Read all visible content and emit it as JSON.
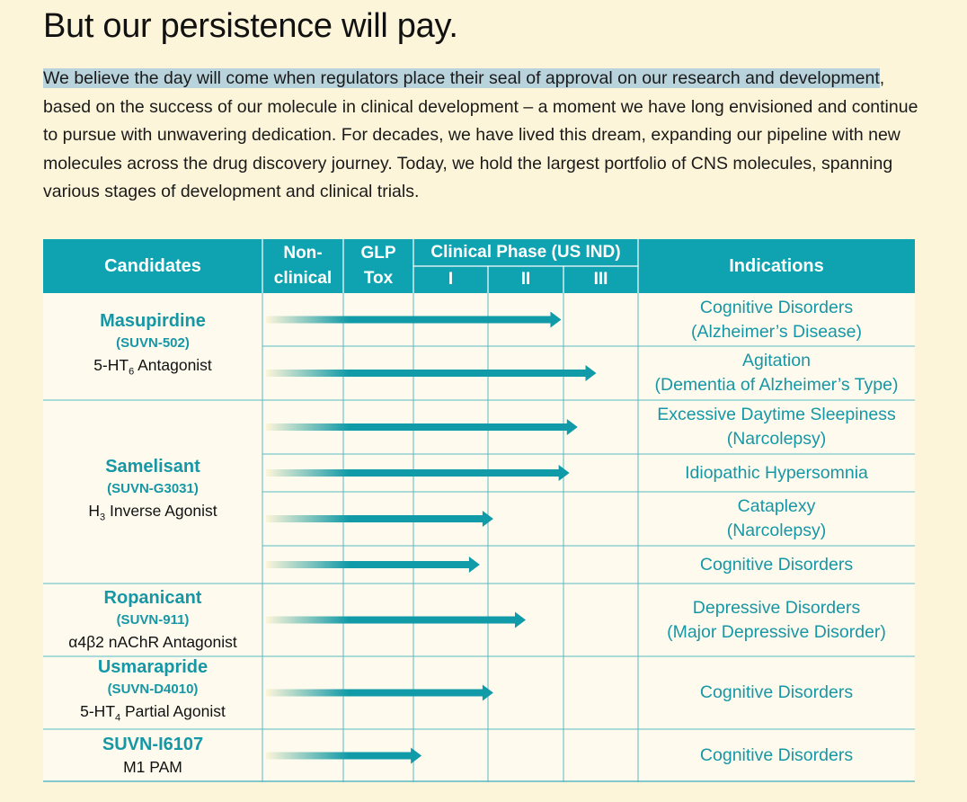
{
  "heading": "But our persistence will pay.",
  "intro": {
    "highlighted": "We believe the day will come when regulators place their seal of approval on our research and development",
    "rest": ", based on the success of our molecule in clinical development – a moment we have long envisioned and continue to pursue with unwavering dedication. For decades, we have lived this dream, expanding our pipeline with new molecules across the drug discovery journey. Today, we hold the largest portfolio of CNS molecules, spanning various stages of development and clinical trials."
  },
  "colors": {
    "background": "#fdf5d9",
    "header_fill": "#0fa3b1",
    "accent_text": "#1597a6",
    "grid_line": "#5ab8c1",
    "arrow": "#119aa8",
    "highlight": "#b9d3dc"
  },
  "table": {
    "headers": {
      "candidates": "Candidates",
      "nonclinical": [
        "Non-",
        "clinical"
      ],
      "glp": [
        "GLP",
        "Tox"
      ],
      "clinical": "Clinical Phase (US IND)",
      "phases": [
        "I",
        "II",
        "III"
      ],
      "indications": "Indications"
    },
    "stage_scale": [
      "Non-clinical",
      "GLP Tox",
      "I",
      "II",
      "III"
    ],
    "candidates": [
      {
        "name": "Masupirdine",
        "code": "(SUVN-502)",
        "moa_pre": "5-HT",
        "moa_sub": "6",
        "moa_post": " Antagonist"
      },
      {
        "name": "Samelisant",
        "code": "(SUVN-G3031)",
        "moa_pre": "H",
        "moa_sub": "3",
        "moa_post": " Inverse Agonist"
      },
      {
        "name": "Ropanicant",
        "code": "(SUVN-911)",
        "moa_pre": "α4β2 nAChR Antagonist",
        "moa_sub": "",
        "moa_post": ""
      },
      {
        "name": "Usmarapride",
        "code": "(SUVN-D4010)",
        "moa_pre": "5-HT",
        "moa_sub": "4",
        "moa_post": " Partial Agonist"
      },
      {
        "name": "SUVN-I6107",
        "code": "",
        "moa_pre": "M1 PAM",
        "moa_sub": "",
        "moa_post": ""
      }
    ],
    "rows": [
      {
        "candidate": 0,
        "indication": [
          "Cognitive Disorders",
          "(Alzheimer’s Disease)"
        ],
        "progress": 3.97
      },
      {
        "candidate": 0,
        "indication": [
          "Agitation",
          "(Dementia of Alzheimer’s Type)"
        ],
        "progress": 4.44
      },
      {
        "candidate": 1,
        "indication": [
          "Excessive Daytime Sleepiness",
          "(Narcolepsy)"
        ],
        "progress": 4.19
      },
      {
        "candidate": 1,
        "indication": [
          "Idiopathic Hypersomnia"
        ],
        "progress": 4.08
      },
      {
        "candidate": 1,
        "indication": [
          "Cataplexy",
          "(Narcolepsy)"
        ],
        "progress": 3.07
      },
      {
        "candidate": 1,
        "indication": [
          "Cognitive Disorders"
        ],
        "progress": 2.89
      },
      {
        "candidate": 2,
        "indication": [
          "Depressive Disorders",
          "(Major Depressive Disorder)"
        ],
        "progress": 3.5
      },
      {
        "candidate": 3,
        "indication": [
          "Cognitive Disorders"
        ],
        "progress": 3.07
      },
      {
        "candidate": 4,
        "indication": [
          "Cognitive Disorders"
        ],
        "progress": 2.11
      }
    ]
  }
}
